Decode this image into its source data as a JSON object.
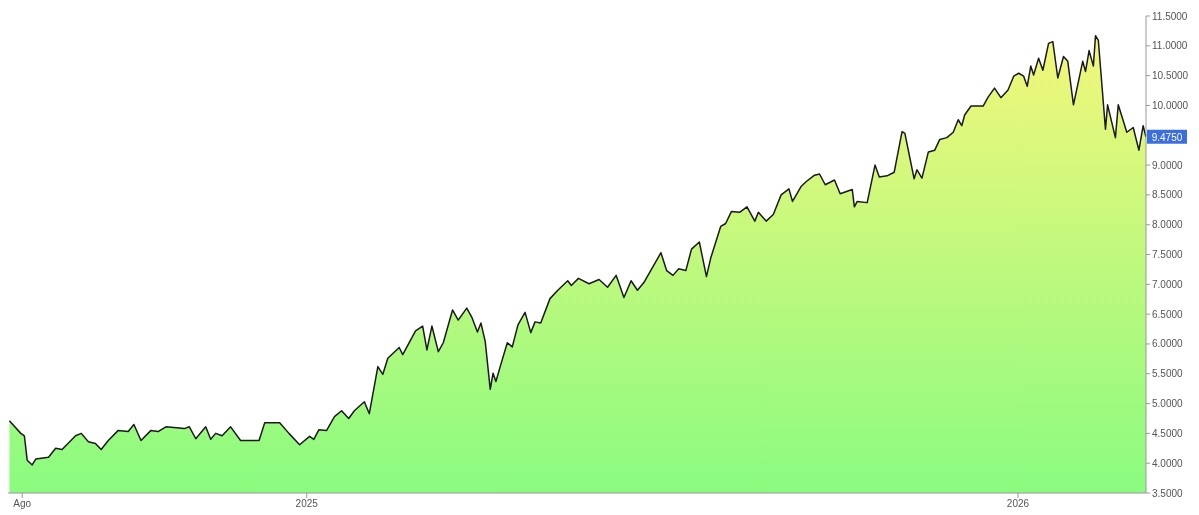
{
  "chart_data": {
    "type": "area",
    "x": [
      2024.582,
      2024.598,
      2024.603,
      2024.607,
      2024.614,
      2024.619,
      2024.637,
      2024.647,
      2024.656,
      2024.675,
      2024.683,
      2024.693,
      2024.703,
      2024.711,
      2024.721,
      2024.735,
      2024.749,
      2024.757,
      2024.767,
      2024.781,
      2024.791,
      2024.802,
      2024.828,
      2024.835,
      2024.844,
      2024.858,
      2024.865,
      2024.872,
      2024.881,
      2024.893,
      2024.907,
      2024.916,
      2024.933,
      2024.941,
      2024.962,
      2024.975,
      2024.99,
      2025.004,
      2025.01,
      2025.017,
      2025.028,
      2025.039,
      2025.049,
      2025.059,
      2025.067,
      2025.081,
      2025.088,
      2025.1,
      2025.107,
      2025.114,
      2025.13,
      2025.135,
      2025.153,
      2025.163,
      2025.169,
      2025.176,
      2025.185,
      2025.192,
      2025.205,
      2025.213,
      2025.225,
      2025.232,
      2025.24,
      2025.245,
      2025.251,
      2025.258,
      2025.262,
      2025.266,
      2025.272,
      2025.282,
      2025.289,
      2025.297,
      2025.307,
      2025.315,
      2025.321,
      2025.329,
      2025.342,
      2025.353,
      2025.367,
      2025.372,
      2025.382,
      2025.397,
      2025.411,
      2025.423,
      2025.435,
      2025.446,
      2025.456,
      2025.465,
      2025.474,
      2025.485,
      2025.498,
      2025.506,
      2025.515,
      2025.523,
      2025.533,
      2025.541,
      2025.552,
      2025.562,
      2025.568,
      2025.582,
      2025.589,
      2025.597,
      2025.609,
      2025.619,
      2025.63,
      2025.635,
      2025.646,
      2025.656,
      2025.667,
      2025.678,
      2025.683,
      2025.695,
      2025.702,
      2025.714,
      2025.721,
      2025.729,
      2025.742,
      2025.75,
      2025.767,
      2025.77,
      2025.774,
      2025.788,
      2025.799,
      2025.805,
      2025.816,
      2025.826,
      2025.837,
      2025.841,
      2025.854,
      2025.858,
      2025.865,
      2025.874,
      2025.883,
      2025.89,
      2025.9,
      2025.909,
      2025.916,
      2025.921,
      2025.925,
      2025.934,
      2025.951,
      2025.958,
      2025.967,
      2025.976,
      2025.986,
      2025.994,
      2026.001,
      2026.008,
      2026.013,
      2026.018,
      2026.022,
      2026.029,
      2026.035,
      2026.043,
      2026.049,
      2026.056,
      2026.064,
      2026.07,
      2026.078,
      2026.091,
      2026.095,
      2026.1,
      2026.106,
      2026.109,
      2026.113,
      2026.123,
      2026.126,
      2026.137,
      2026.141,
      2026.153,
      2026.162,
      2026.17,
      2026.176,
      2026.18
    ],
    "values": [
      4.71,
      4.5,
      4.46,
      4.05,
      3.97,
      4.07,
      4.1,
      4.25,
      4.23,
      4.46,
      4.5,
      4.36,
      4.33,
      4.23,
      4.38,
      4.55,
      4.53,
      4.65,
      4.38,
      4.55,
      4.53,
      4.61,
      4.58,
      4.61,
      4.41,
      4.61,
      4.4,
      4.5,
      4.46,
      4.61,
      4.38,
      4.38,
      4.38,
      4.68,
      4.68,
      4.5,
      4.31,
      4.45,
      4.4,
      4.56,
      4.55,
      4.78,
      4.88,
      4.75,
      4.88,
      5.03,
      4.83,
      5.62,
      5.49,
      5.76,
      5.94,
      5.82,
      6.22,
      6.3,
      5.9,
      6.3,
      5.87,
      6.02,
      6.57,
      6.4,
      6.6,
      6.45,
      6.2,
      6.35,
      6.04,
      5.24,
      5.51,
      5.37,
      5.62,
      6.02,
      5.95,
      6.32,
      6.53,
      6.19,
      6.37,
      6.35,
      6.76,
      6.9,
      7.06,
      6.98,
      7.1,
      7.01,
      7.08,
      6.95,
      7.15,
      6.78,
      7.06,
      6.9,
      7.03,
      7.26,
      7.53,
      7.23,
      7.15,
      7.26,
      7.23,
      7.59,
      7.71,
      7.13,
      7.44,
      7.97,
      8.02,
      8.22,
      8.21,
      8.3,
      8.06,
      8.21,
      8.06,
      8.17,
      8.5,
      8.6,
      8.39,
      8.64,
      8.72,
      8.83,
      8.85,
      8.67,
      8.75,
      8.52,
      8.59,
      8.3,
      8.39,
      8.37,
      9.0,
      8.8,
      8.82,
      8.88,
      9.56,
      9.53,
      8.77,
      8.92,
      8.78,
      9.22,
      9.25,
      9.43,
      9.46,
      9.55,
      9.76,
      9.66,
      9.84,
      9.99,
      9.99,
      10.14,
      10.29,
      10.13,
      10.26,
      10.49,
      10.54,
      10.49,
      10.32,
      10.66,
      10.51,
      10.79,
      10.59,
      11.04,
      11.07,
      10.46,
      10.82,
      10.74,
      10.01,
      10.74,
      10.57,
      10.92,
      10.66,
      11.17,
      11.09,
      9.6,
      10.01,
      9.46,
      10.01,
      9.55,
      9.63,
      9.25,
      9.66,
      9.47
    ],
    "color": "#1a1a1a",
    "xlim": [
      2024.58,
      2026.18
    ],
    "xticks": [
      {
        "value": 2024.6,
        "label": "Ago"
      },
      {
        "value": 2025,
        "label": "2025"
      },
      {
        "value": 2026,
        "label": "2026"
      }
    ],
    "ylim": [
      3.5,
      11.5
    ],
    "yticks": [
      {
        "value": 3.5,
        "label": "3.5000"
      },
      {
        "value": 4,
        "label": "4.0000"
      },
      {
        "value": 4.5,
        "label": "4.5000"
      },
      {
        "value": 5,
        "label": "5.0000"
      },
      {
        "value": 5.5,
        "label": "5.5000"
      },
      {
        "value": 6,
        "label": "6.0000"
      },
      {
        "value": 6.5,
        "label": "6.5000"
      },
      {
        "value": 7,
        "label": "7.0000"
      },
      {
        "value": 7.5,
        "label": "7.5000"
      },
      {
        "value": 8,
        "label": "8.0000"
      },
      {
        "value": 8.5,
        "label": "8.5000"
      },
      {
        "value": 9,
        "label": "9.0000"
      },
      {
        "value": 9.5,
        "label": null
      },
      {
        "value": 10,
        "label": "10.0000"
      },
      {
        "value": 10.5,
        "label": "10.5000"
      },
      {
        "value": 11,
        "label": "11.0000"
      },
      {
        "value": 11.5,
        "label": "11.5000"
      }
    ],
    "annotations": [
      {
        "text": "9.4750",
        "x": 2026.18,
        "y": 9.475
      }
    ]
  }
}
